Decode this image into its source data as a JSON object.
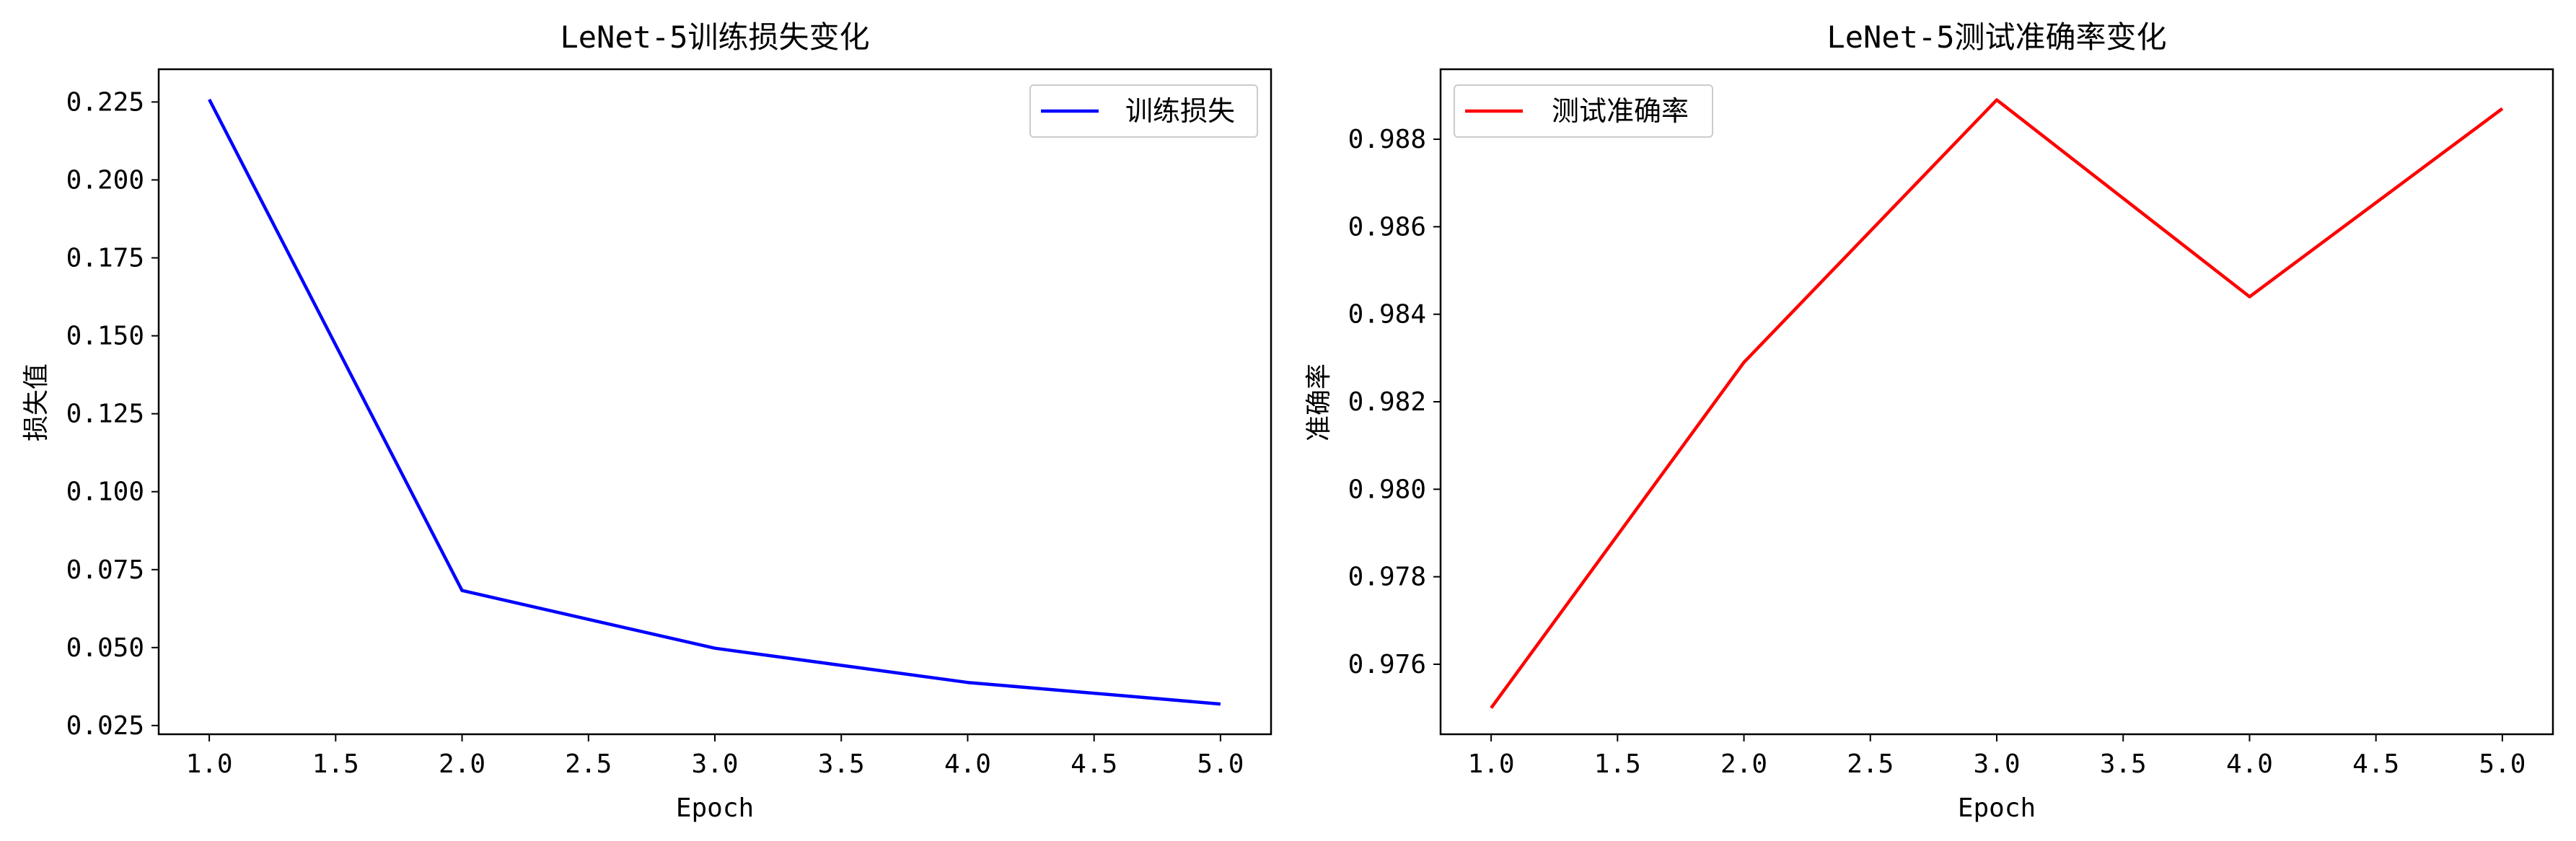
{
  "chart_data": [
    {
      "type": "line",
      "title": "LeNet-5训练损失变化",
      "xlabel": "Epoch",
      "ylabel": "损失值",
      "x": [
        1,
        2,
        3,
        4,
        5
      ],
      "series": [
        {
          "name": "训练损失",
          "color": "#0000ff",
          "values": [
            0.2258,
            0.0683,
            0.0498,
            0.0388,
            0.0319
          ]
        }
      ],
      "xlim": [
        0.8,
        5.2
      ],
      "ylim": [
        0.0222,
        0.2355
      ],
      "xticks": [
        1.0,
        1.5,
        2.0,
        2.5,
        3.0,
        3.5,
        4.0,
        4.5,
        5.0
      ],
      "xtick_labels": [
        "1.0",
        "1.5",
        "2.0",
        "2.5",
        "3.0",
        "3.5",
        "4.0",
        "4.5",
        "5.0"
      ],
      "yticks": [
        0.025,
        0.05,
        0.075,
        0.1,
        0.125,
        0.15,
        0.175,
        0.2,
        0.225
      ],
      "ytick_labels": [
        "0.025",
        "0.050",
        "0.075",
        "0.100",
        "0.125",
        "0.150",
        "0.175",
        "0.200",
        "0.225"
      ],
      "grid": false,
      "legend_position": "top-right"
    },
    {
      "type": "line",
      "title": "LeNet-5测试准确率变化",
      "xlabel": "Epoch",
      "ylabel": "准确率",
      "x": [
        1,
        2,
        3,
        4,
        5
      ],
      "series": [
        {
          "name": "测试准确率",
          "color": "#ff0000",
          "values": [
            0.975,
            0.9829,
            0.9889,
            0.9844,
            0.9887
          ]
        }
      ],
      "xlim": [
        0.8,
        5.2
      ],
      "ylim": [
        0.9744,
        0.9896
      ],
      "xticks": [
        1.0,
        1.5,
        2.0,
        2.5,
        3.0,
        3.5,
        4.0,
        4.5,
        5.0
      ],
      "xtick_labels": [
        "1.0",
        "1.5",
        "2.0",
        "2.5",
        "3.0",
        "3.5",
        "4.0",
        "4.5",
        "5.0"
      ],
      "yticks": [
        0.976,
        0.978,
        0.98,
        0.982,
        0.984,
        0.986,
        0.988
      ],
      "ytick_labels": [
        "0.976",
        "0.978",
        "0.980",
        "0.982",
        "0.984",
        "0.986",
        "0.988"
      ],
      "grid": false,
      "legend_position": "top-left"
    }
  ]
}
